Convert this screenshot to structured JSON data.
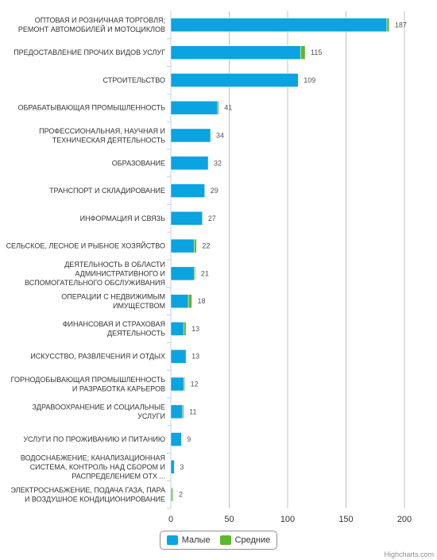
{
  "chart_data": {
    "type": "bar",
    "orientation": "horizontal",
    "stacked": true,
    "categories": [
      [
        "ОПТОВАЯ И РОЗНИЧНАЯ ТОРГОВЛЯ;",
        "РЕМОНТ АВТОМОБИЛЕЙ И МОТОЦИКЛОВ"
      ],
      [
        "ПРЕДОСТАВЛЕНИЕ ПРОЧИХ ВИДОВ УСЛУГ"
      ],
      [
        "СТРОИТЕЛЬСТВО"
      ],
      [
        "ОБРАБАТЫВАЮЩАЯ ПРОМЫШЛЕННОСТЬ"
      ],
      [
        "ПРОФЕССИОНАЛЬНАЯ, НАУЧНАЯ И",
        "ТЕХНИЧЕСКАЯ ДЕЯТЕЛЬНОСТЬ"
      ],
      [
        "ОБРАЗОВАНИЕ"
      ],
      [
        "ТРАНСПОРТ И СКЛАДИРОВАНИЕ"
      ],
      [
        "ИНФОРМАЦИЯ И СВЯЗЬ"
      ],
      [
        "СЕЛЬСКОЕ, ЛЕСНОЕ И РЫБНОЕ ХОЗЯЙСТВО"
      ],
      [
        "ДЕЯТЕЛЬНОСТЬ В ОБЛАСТИ",
        "АДМИНИСТРАТИВНОГО И",
        "ВСПОМОГАТЕЛЬНОГО ОБСЛУЖИВАНИЯ"
      ],
      [
        "ОПЕРАЦИИ С НЕДВИЖИМЫМ",
        "ИМУЩЕСТВОМ"
      ],
      [
        "ФИНАНСОВАЯ И СТРАХОВАЯ",
        "ДЕЯТЕЛЬНОСТЬ"
      ],
      [
        "ИСКУССТВО, РАЗВЛЕЧЕНИЯ И ОТДЫХ"
      ],
      [
        "ГОРНОДОБЫВАЮЩАЯ ПРОМЫШЛЕННОСТЬ",
        "И РАЗРАБОТКА КАРЬЕРОВ"
      ],
      [
        "ЗДРАВООХРАНЕНИЕ И СОЦИАЛЬНЫЕ",
        "УСЛУГИ"
      ],
      [
        "УСЛУГИ ПО ПРОЖИВАНИЮ И ПИТАНИЮ"
      ],
      [
        "ВОДОСНАБЖЕНИЕ; КАНАЛИЗАЦИОННАЯ",
        "СИСТЕМА, КОНТРОЛЬ НАД СБОРОМ И",
        "РАСПРЕДЕЛЕНИЕМ ОТХ ..."
      ],
      [
        "ЭЛЕКТРОСНАБЖЕНИЕ, ПОДАЧА ГАЗА, ПАРА",
        "И ВОЗДУШНОЕ КОНДИЦИОНИРОВАНИЕ"
      ]
    ],
    "series": [
      {
        "name": "Малые",
        "color": "#0ba3e0",
        "values": [
          185,
          111,
          109,
          40,
          34,
          32,
          29,
          27,
          20,
          20,
          15,
          11,
          13,
          11,
          10,
          9,
          3,
          1
        ]
      },
      {
        "name": "Средние",
        "color": "#5cb82e",
        "values": [
          2,
          4,
          0,
          1,
          0,
          0,
          0,
          0,
          2,
          1,
          3,
          2,
          0,
          1,
          1,
          0,
          0,
          1
        ]
      }
    ],
    "totals": [
      "187",
      "115",
      "109",
      "41",
      "34",
      "32",
      "29",
      "27",
      "22",
      "21",
      "18",
      "13",
      "13",
      "12",
      "11",
      "9",
      "3",
      "2"
    ],
    "xlim": [
      0,
      200
    ],
    "x_ticks": [
      "0",
      "50",
      "100",
      "150",
      "200"
    ],
    "grid": true,
    "legend_position": "bottom-center",
    "credits": "Highcharts.com"
  },
  "legend": {
    "small_label": "Малые",
    "medium_label": "Средние"
  }
}
